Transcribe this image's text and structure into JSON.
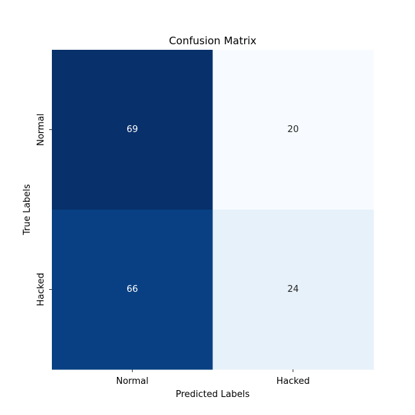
{
  "chart_data": {
    "type": "heatmap",
    "title": "Confusion Matrix",
    "xlabel": "Predicted Labels",
    "ylabel": "True Labels",
    "x_categories": [
      "Normal",
      "Hacked"
    ],
    "y_categories": [
      "Normal",
      "Hacked"
    ],
    "values": [
      [
        69,
        20
      ],
      [
        66,
        24
      ]
    ],
    "colormap": "Blues",
    "colorbar": false,
    "grid": false,
    "dark_text_color": "#262626",
    "light_text_color": "#ffffff"
  }
}
